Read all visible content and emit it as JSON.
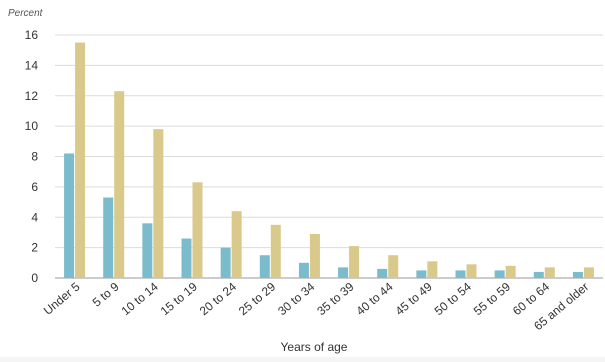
{
  "chart_data": {
    "type": "bar",
    "ylabel": "Percent",
    "xlabel": "Years of age",
    "categories": [
      "Under 5",
      "5 to 9",
      "10 to 14",
      "15 to 19",
      "20 to 24",
      "25 to 29",
      "30 to 34",
      "35 to 39",
      "40 to 44",
      "45 to 49",
      "50 to 54",
      "55 to 59",
      "60 to 64",
      "65 and older"
    ],
    "yticks": [
      "0",
      "2",
      "4",
      "6",
      "8",
      "10",
      "12",
      "14",
      "16"
    ],
    "ylim": [
      0,
      16
    ],
    "grid": true,
    "series": [
      {
        "color": "#7bbccc",
        "values": [
          8.2,
          5.3,
          3.6,
          2.6,
          2.0,
          1.5,
          1.0,
          0.7,
          0.6,
          0.5,
          0.5,
          0.5,
          0.4,
          0.4
        ]
      },
      {
        "color": "#d9c98a",
        "values": [
          15.5,
          12.3,
          9.8,
          6.3,
          4.4,
          3.5,
          2.9,
          2.1,
          1.5,
          1.1,
          0.9,
          0.8,
          0.7,
          0.7
        ]
      }
    ]
  }
}
